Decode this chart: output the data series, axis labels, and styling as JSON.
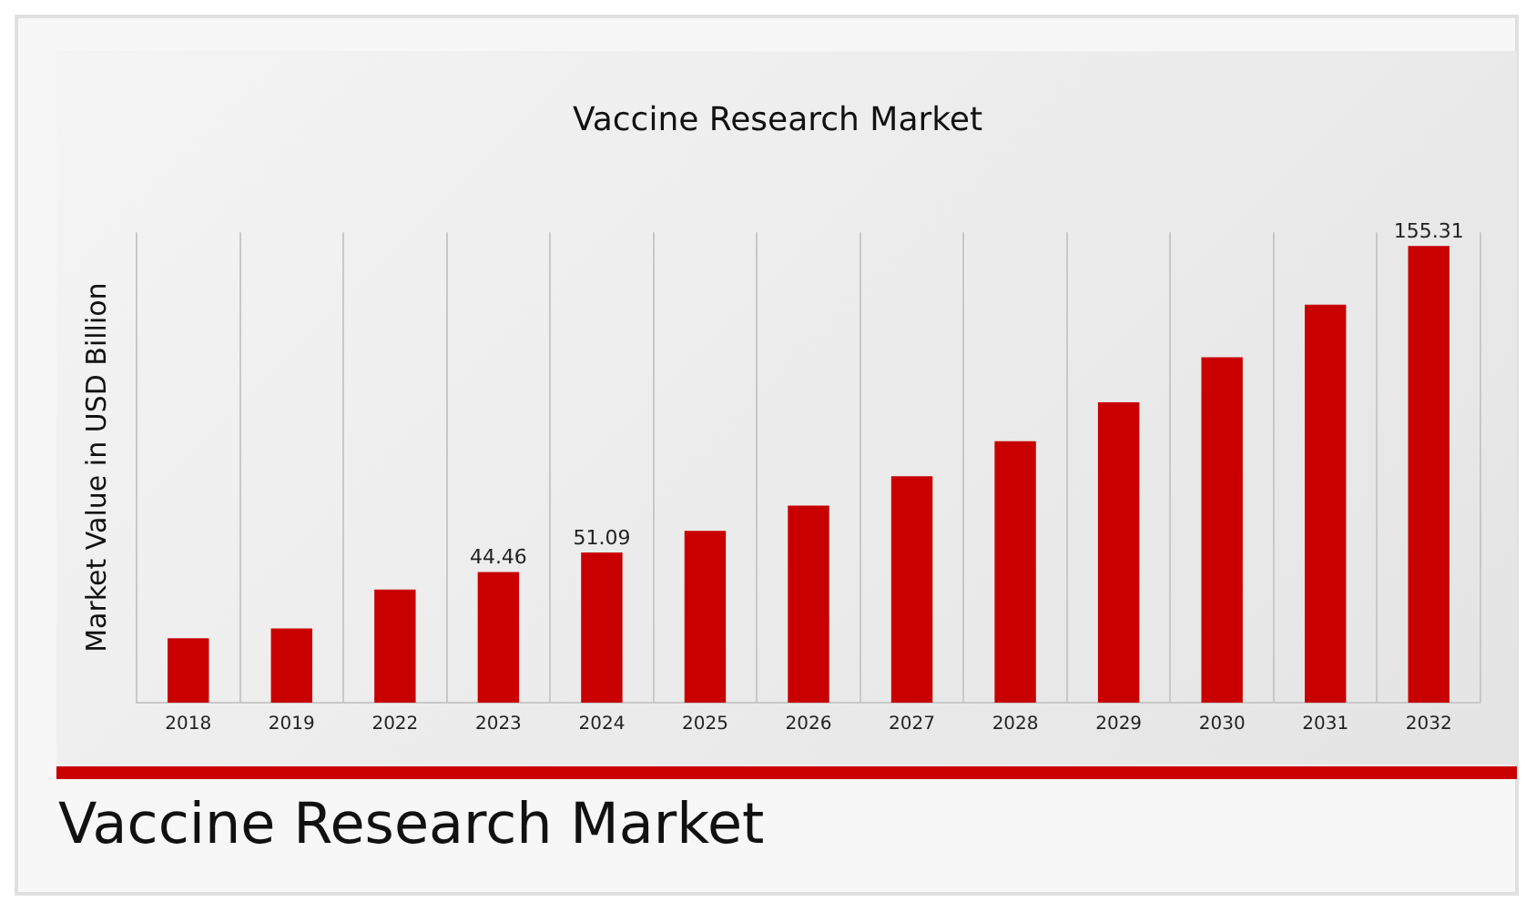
{
  "chart_data": {
    "type": "bar",
    "title": "Vaccine Research Market",
    "ylabel": "Market Value in USD Billion",
    "categories": [
      "2018",
      "2019",
      "2022",
      "2023",
      "2024",
      "2025",
      "2026",
      "2027",
      "2028",
      "2029",
      "2030",
      "2031",
      "2032"
    ],
    "series": [
      {
        "color": "#c80000",
        "values": [
          21.9,
          25.2,
          38.5,
          44.46,
          51.09,
          58.4,
          67.0,
          77.0,
          88.9,
          102.2,
          117.5,
          135.4,
          155.31
        ],
        "value_labels": [
          null,
          null,
          null,
          "44.46",
          "51.09",
          null,
          null,
          null,
          null,
          null,
          null,
          null,
          "155.31"
        ]
      }
    ],
    "grid": "x",
    "legend": false,
    "annotations": [
      "Vaccine Research Market"
    ]
  }
}
